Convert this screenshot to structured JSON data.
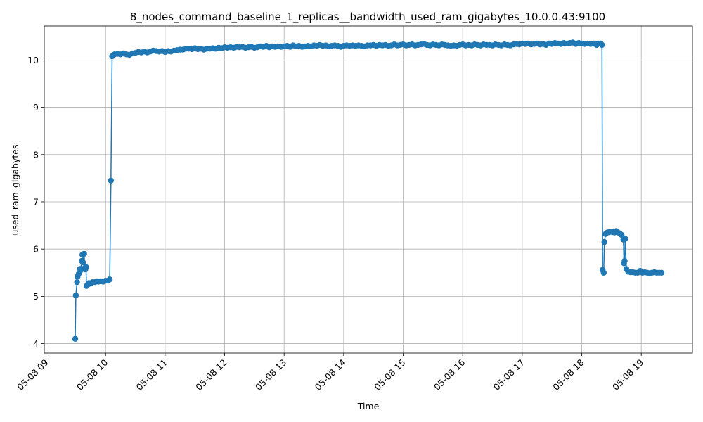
{
  "chart_data": {
    "type": "line",
    "title": "8_nodes_command_baseline_1_replicas__bandwidth_used_ram_gigabytes_10.0.0.43:9100",
    "xlabel": "Time",
    "ylabel": "used_ram_gigabytes",
    "x_start_hour": 8.97,
    "x_end_hour": 19.86,
    "ylim": [
      3.8,
      10.72
    ],
    "xticks": [
      {
        "label": "05-08 09",
        "hour": 9
      },
      {
        "label": "05-08 10",
        "hour": 10
      },
      {
        "label": "05-08 11",
        "hour": 11
      },
      {
        "label": "05-08 12",
        "hour": 12
      },
      {
        "label": "05-08 13",
        "hour": 13
      },
      {
        "label": "05-08 14",
        "hour": 14
      },
      {
        "label": "05-08 15",
        "hour": 15
      },
      {
        "label": "05-08 16",
        "hour": 16
      },
      {
        "label": "05-08 17",
        "hour": 17
      },
      {
        "label": "05-08 18",
        "hour": 18
      },
      {
        "label": "05-08 19",
        "hour": 19
      }
    ],
    "yticks": [
      4,
      5,
      6,
      7,
      8,
      9,
      10
    ],
    "grid": true,
    "series": [
      {
        "name": "",
        "color": "#1f77b4",
        "marker": "circle",
        "points": [
          [
            9.49,
            4.1
          ],
          [
            9.5,
            5.02
          ],
          [
            9.52,
            5.3
          ],
          [
            9.53,
            5.42
          ],
          [
            9.55,
            5.48
          ],
          [
            9.57,
            5.58
          ],
          [
            9.58,
            5.55
          ],
          [
            9.6,
            5.75
          ],
          [
            9.61,
            5.88
          ],
          [
            9.62,
            5.72
          ],
          [
            9.64,
            5.9
          ],
          [
            9.65,
            5.6
          ],
          [
            9.66,
            5.57
          ],
          [
            9.67,
            5.62
          ],
          [
            9.68,
            5.22
          ],
          [
            9.7,
            5.25
          ],
          [
            9.72,
            5.28
          ],
          [
            9.75,
            5.27
          ],
          [
            9.78,
            5.3
          ],
          [
            9.82,
            5.3
          ],
          [
            9.85,
            5.32
          ],
          [
            9.88,
            5.31
          ],
          [
            9.92,
            5.32
          ],
          [
            9.96,
            5.31
          ],
          [
            10.0,
            5.33
          ],
          [
            10.04,
            5.33
          ],
          [
            10.07,
            5.36
          ],
          [
            10.09,
            7.45
          ],
          [
            10.11,
            10.08
          ],
          [
            10.15,
            10.12
          ],
          [
            10.2,
            10.13
          ],
          [
            10.25,
            10.12
          ],
          [
            10.3,
            10.14
          ],
          [
            10.35,
            10.12
          ],
          [
            10.4,
            10.11
          ],
          [
            10.45,
            10.14
          ],
          [
            10.5,
            10.15
          ],
          [
            10.55,
            10.17
          ],
          [
            10.6,
            10.16
          ],
          [
            10.65,
            10.18
          ],
          [
            10.7,
            10.16
          ],
          [
            10.75,
            10.18
          ],
          [
            10.8,
            10.2
          ],
          [
            10.85,
            10.19
          ],
          [
            10.9,
            10.18
          ],
          [
            10.95,
            10.19
          ],
          [
            11.0,
            10.17
          ],
          [
            11.05,
            10.19
          ],
          [
            11.1,
            10.18
          ],
          [
            11.15,
            10.2
          ],
          [
            11.2,
            10.21
          ],
          [
            11.25,
            10.22
          ],
          [
            11.3,
            10.22
          ],
          [
            11.35,
            10.24
          ],
          [
            11.4,
            10.24
          ],
          [
            11.45,
            10.23
          ],
          [
            11.5,
            10.25
          ],
          [
            11.55,
            10.23
          ],
          [
            11.6,
            10.24
          ],
          [
            11.65,
            10.22
          ],
          [
            11.7,
            10.24
          ],
          [
            11.75,
            10.24
          ],
          [
            11.8,
            10.25
          ],
          [
            11.85,
            10.24
          ],
          [
            11.9,
            10.26
          ],
          [
            11.95,
            10.25
          ],
          [
            12.0,
            10.27
          ],
          [
            12.05,
            10.26
          ],
          [
            12.1,
            10.27
          ],
          [
            12.15,
            10.26
          ],
          [
            12.2,
            10.28
          ],
          [
            12.25,
            10.27
          ],
          [
            12.3,
            10.28
          ],
          [
            12.35,
            10.26
          ],
          [
            12.4,
            10.27
          ],
          [
            12.45,
            10.28
          ],
          [
            12.5,
            10.26
          ],
          [
            12.55,
            10.27
          ],
          [
            12.6,
            10.29
          ],
          [
            12.65,
            10.28
          ],
          [
            12.7,
            10.3
          ],
          [
            12.75,
            10.27
          ],
          [
            12.8,
            10.29
          ],
          [
            12.85,
            10.28
          ],
          [
            12.9,
            10.29
          ],
          [
            12.95,
            10.28
          ],
          [
            13.0,
            10.29
          ],
          [
            13.05,
            10.3
          ],
          [
            13.1,
            10.28
          ],
          [
            13.15,
            10.31
          ],
          [
            13.2,
            10.29
          ],
          [
            13.25,
            10.3
          ],
          [
            13.3,
            10.28
          ],
          [
            13.35,
            10.29
          ],
          [
            13.4,
            10.3
          ],
          [
            13.45,
            10.29
          ],
          [
            13.5,
            10.31
          ],
          [
            13.55,
            10.3
          ],
          [
            13.6,
            10.32
          ],
          [
            13.65,
            10.3
          ],
          [
            13.7,
            10.31
          ],
          [
            13.75,
            10.29
          ],
          [
            13.8,
            10.3
          ],
          [
            13.85,
            10.31
          ],
          [
            13.9,
            10.3
          ],
          [
            13.95,
            10.28
          ],
          [
            14.0,
            10.3
          ],
          [
            14.05,
            10.31
          ],
          [
            14.1,
            10.3
          ],
          [
            14.15,
            10.31
          ],
          [
            14.2,
            10.3
          ],
          [
            14.25,
            10.31
          ],
          [
            14.3,
            10.3
          ],
          [
            14.35,
            10.29
          ],
          [
            14.4,
            10.31
          ],
          [
            14.45,
            10.31
          ],
          [
            14.5,
            10.32
          ],
          [
            14.55,
            10.3
          ],
          [
            14.6,
            10.32
          ],
          [
            14.65,
            10.31
          ],
          [
            14.7,
            10.32
          ],
          [
            14.75,
            10.3
          ],
          [
            14.8,
            10.31
          ],
          [
            14.85,
            10.33
          ],
          [
            14.9,
            10.31
          ],
          [
            14.95,
            10.32
          ],
          [
            15.0,
            10.33
          ],
          [
            15.05,
            10.31
          ],
          [
            15.1,
            10.32
          ],
          [
            15.15,
            10.33
          ],
          [
            15.2,
            10.31
          ],
          [
            15.25,
            10.32
          ],
          [
            15.3,
            10.33
          ],
          [
            15.35,
            10.34
          ],
          [
            15.4,
            10.32
          ],
          [
            15.45,
            10.31
          ],
          [
            15.5,
            10.33
          ],
          [
            15.55,
            10.32
          ],
          [
            15.6,
            10.31
          ],
          [
            15.65,
            10.33
          ],
          [
            15.7,
            10.32
          ],
          [
            15.75,
            10.31
          ],
          [
            15.8,
            10.3
          ],
          [
            15.85,
            10.31
          ],
          [
            15.9,
            10.3
          ],
          [
            15.95,
            10.32
          ],
          [
            16.0,
            10.33
          ],
          [
            16.05,
            10.31
          ],
          [
            16.1,
            10.32
          ],
          [
            16.15,
            10.31
          ],
          [
            16.2,
            10.33
          ],
          [
            16.25,
            10.32
          ],
          [
            16.3,
            10.31
          ],
          [
            16.35,
            10.33
          ],
          [
            16.4,
            10.32
          ],
          [
            16.45,
            10.32
          ],
          [
            16.5,
            10.31
          ],
          [
            16.55,
            10.33
          ],
          [
            16.6,
            10.32
          ],
          [
            16.65,
            10.31
          ],
          [
            16.7,
            10.33
          ],
          [
            16.75,
            10.32
          ],
          [
            16.8,
            10.31
          ],
          [
            16.85,
            10.33
          ],
          [
            16.9,
            10.34
          ],
          [
            16.95,
            10.33
          ],
          [
            17.0,
            10.35
          ],
          [
            17.05,
            10.34
          ],
          [
            17.1,
            10.35
          ],
          [
            17.15,
            10.33
          ],
          [
            17.2,
            10.34
          ],
          [
            17.25,
            10.35
          ],
          [
            17.3,
            10.33
          ],
          [
            17.35,
            10.34
          ],
          [
            17.4,
            10.32
          ],
          [
            17.45,
            10.35
          ],
          [
            17.5,
            10.34
          ],
          [
            17.55,
            10.36
          ],
          [
            17.6,
            10.35
          ],
          [
            17.65,
            10.34
          ],
          [
            17.7,
            10.36
          ],
          [
            17.75,
            10.35
          ],
          [
            17.8,
            10.36
          ],
          [
            17.85,
            10.37
          ],
          [
            17.9,
            10.34
          ],
          [
            17.95,
            10.36
          ],
          [
            18.0,
            10.35
          ],
          [
            18.05,
            10.34
          ],
          [
            18.1,
            10.35
          ],
          [
            18.15,
            10.34
          ],
          [
            18.2,
            10.35
          ],
          [
            18.25,
            10.32
          ],
          [
            18.28,
            10.35
          ],
          [
            18.32,
            10.35
          ],
          [
            18.34,
            10.32
          ],
          [
            18.35,
            5.56
          ],
          [
            18.37,
            5.5
          ],
          [
            18.38,
            6.15
          ],
          [
            18.4,
            6.32
          ],
          [
            18.43,
            6.35
          ],
          [
            18.46,
            6.36
          ],
          [
            18.49,
            6.37
          ],
          [
            18.52,
            6.36
          ],
          [
            18.55,
            6.35
          ],
          [
            18.58,
            6.38
          ],
          [
            18.61,
            6.35
          ],
          [
            18.64,
            6.33
          ],
          [
            18.67,
            6.3
          ],
          [
            18.7,
            6.2
          ],
          [
            18.71,
            5.7
          ],
          [
            18.72,
            5.75
          ],
          [
            18.73,
            6.22
          ],
          [
            18.75,
            5.58
          ],
          [
            18.78,
            5.52
          ],
          [
            18.82,
            5.51
          ],
          [
            18.86,
            5.51
          ],
          [
            18.9,
            5.5
          ],
          [
            18.94,
            5.5
          ],
          [
            18.98,
            5.54
          ],
          [
            19.02,
            5.5
          ],
          [
            19.06,
            5.51
          ],
          [
            19.1,
            5.5
          ],
          [
            19.14,
            5.49
          ],
          [
            19.18,
            5.5
          ],
          [
            19.22,
            5.51
          ],
          [
            19.26,
            5.5
          ],
          [
            19.3,
            5.5
          ],
          [
            19.34,
            5.5
          ]
        ]
      }
    ]
  }
}
